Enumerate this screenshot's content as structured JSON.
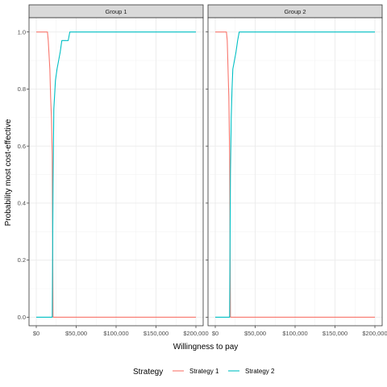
{
  "chart_data": {
    "type": "line",
    "xlabel": "Willingness to pay",
    "ylabel": "Probability most cost-effective",
    "xlim": [
      0,
      200000
    ],
    "ylim": [
      -0.03,
      1.05
    ],
    "x_ticks": [
      0,
      50000,
      100000,
      150000,
      200000
    ],
    "x_tick_labels": [
      "$0",
      "$50,000",
      "$100,000",
      "$150,000",
      "$200,000"
    ],
    "y_ticks": [
      0,
      0.2,
      0.4,
      0.6,
      0.8,
      1.0
    ],
    "y_tick_labels": [
      "0.0",
      "0.2",
      "0.4",
      "0.6",
      "0.8",
      "1.0"
    ],
    "grid": true,
    "legend": {
      "title": "Strategy",
      "position": "bottom",
      "entries": [
        {
          "label": "Strategy 1",
          "color": "#F8766D"
        },
        {
          "label": "Strategy 2",
          "color": "#00BFC4"
        }
      ]
    },
    "facets": [
      {
        "label": "Group 1",
        "series": [
          {
            "name": "Strategy 1",
            "color": "#F8766D",
            "x": [
              0,
              14000,
              15000,
              17000,
              18000,
              19000,
              20000,
              21000,
              22000,
              23000,
              200000
            ],
            "y": [
              1.0,
              1.0,
              0.97,
              0.87,
              0.77,
              0.7,
              0.57,
              0.0,
              0.0,
              0.0,
              0.0
            ]
          },
          {
            "name": "Strategy 2",
            "color": "#00BFC4",
            "x": [
              0,
              20000,
              21000,
              22000,
              24000,
              26000,
              28000,
              30000,
              32000,
              34000,
              36000,
              38000,
              40000,
              42000,
              200000
            ],
            "y": [
              0.0,
              0.0,
              0.47,
              0.73,
              0.83,
              0.87,
              0.9,
              0.93,
              0.97,
              0.97,
              0.97,
              0.97,
              0.97,
              1.0,
              1.0
            ]
          }
        ]
      },
      {
        "label": "Group 2",
        "series": [
          {
            "name": "Strategy 1",
            "color": "#F8766D",
            "x": [
              0,
              14000,
              15000,
              16000,
              17000,
              18000,
              19000,
              20000,
              200000
            ],
            "y": [
              1.0,
              1.0,
              0.97,
              0.87,
              0.77,
              0.57,
              0.0,
              0.0,
              0.0
            ]
          },
          {
            "name": "Strategy 2",
            "color": "#00BFC4",
            "x": [
              0,
              18000,
              19000,
              20000,
              21000,
              22000,
              24000,
              26000,
              28000,
              30000,
              200000
            ],
            "y": [
              0.0,
              0.0,
              0.5,
              0.7,
              0.8,
              0.87,
              0.9,
              0.93,
              0.97,
              1.0,
              1.0
            ]
          }
        ]
      }
    ]
  }
}
